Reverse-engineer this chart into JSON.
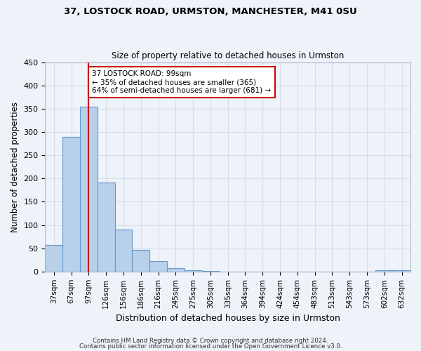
{
  "title1": "37, LOSTOCK ROAD, URMSTON, MANCHESTER, M41 0SU",
  "title2": "Size of property relative to detached houses in Urmston",
  "xlabel": "Distribution of detached houses by size in Urmston",
  "ylabel": "Number of detached properties",
  "bin_labels": [
    "37sqm",
    "67sqm",
    "97sqm",
    "126sqm",
    "156sqm",
    "186sqm",
    "216sqm",
    "245sqm",
    "275sqm",
    "305sqm",
    "335sqm",
    "364sqm",
    "394sqm",
    "424sqm",
    "454sqm",
    "483sqm",
    "513sqm",
    "543sqm",
    "573sqm",
    "602sqm",
    "632sqm"
  ],
  "bar_values": [
    57,
    289,
    355,
    191,
    90,
    46,
    22,
    8,
    3,
    1,
    0,
    0,
    0,
    0,
    0,
    0,
    0,
    0,
    0,
    3,
    2
  ],
  "bar_color": "#b8d0ea",
  "bar_edge_color": "#6699cc",
  "vline_x": 2,
  "vline_color": "#cc0000",
  "annotation_title": "37 LOSTOCK ROAD: 99sqm",
  "annotation_line1": "← 35% of detached houses are smaller (365)",
  "annotation_line2": "64% of semi-detached houses are larger (681) →",
  "annotation_box_color": "#cc0000",
  "ylim": [
    0,
    450
  ],
  "yticks": [
    0,
    50,
    100,
    150,
    200,
    250,
    300,
    350,
    400,
    450
  ],
  "footer1": "Contains HM Land Registry data © Crown copyright and database right 2024.",
  "footer2": "Contains public sector information licensed under the Open Government Licence v3.0.",
  "bg_color": "#eef2f9",
  "grid_color": "#d8dde8"
}
